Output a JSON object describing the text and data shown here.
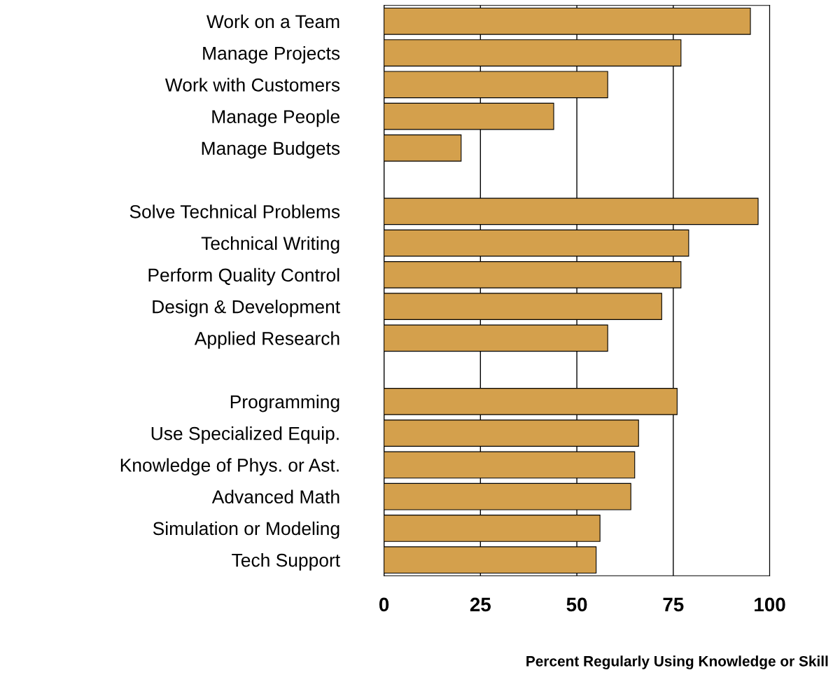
{
  "chart_data": {
    "type": "bar",
    "orientation": "horizontal",
    "xlabel": "Percent Regularly Using Knowledge or Skill",
    "categories": [
      "Work on a Team",
      "Manage Projects",
      "Work with Customers",
      "Manage People",
      "Manage Budgets",
      null,
      "Solve Technical Problems",
      "Technical Writing",
      "Perform Quality Control",
      "Design & Development",
      "Applied Research",
      null,
      "Programming",
      "Use Specialized Equip.",
      "Knowledge of Phys. or Ast.",
      "Advanced Math",
      "Simulation or Modeling",
      "Tech Support"
    ],
    "values": [
      95,
      77,
      58,
      44,
      20,
      null,
      97,
      79,
      77,
      72,
      58,
      null,
      76,
      66,
      65,
      64,
      56,
      55
    ],
    "color": "#d4a04c",
    "xlim": [
      0,
      100
    ],
    "xticks": [
      0,
      25,
      50,
      75,
      100
    ],
    "grid": "x",
    "legend": false
  }
}
